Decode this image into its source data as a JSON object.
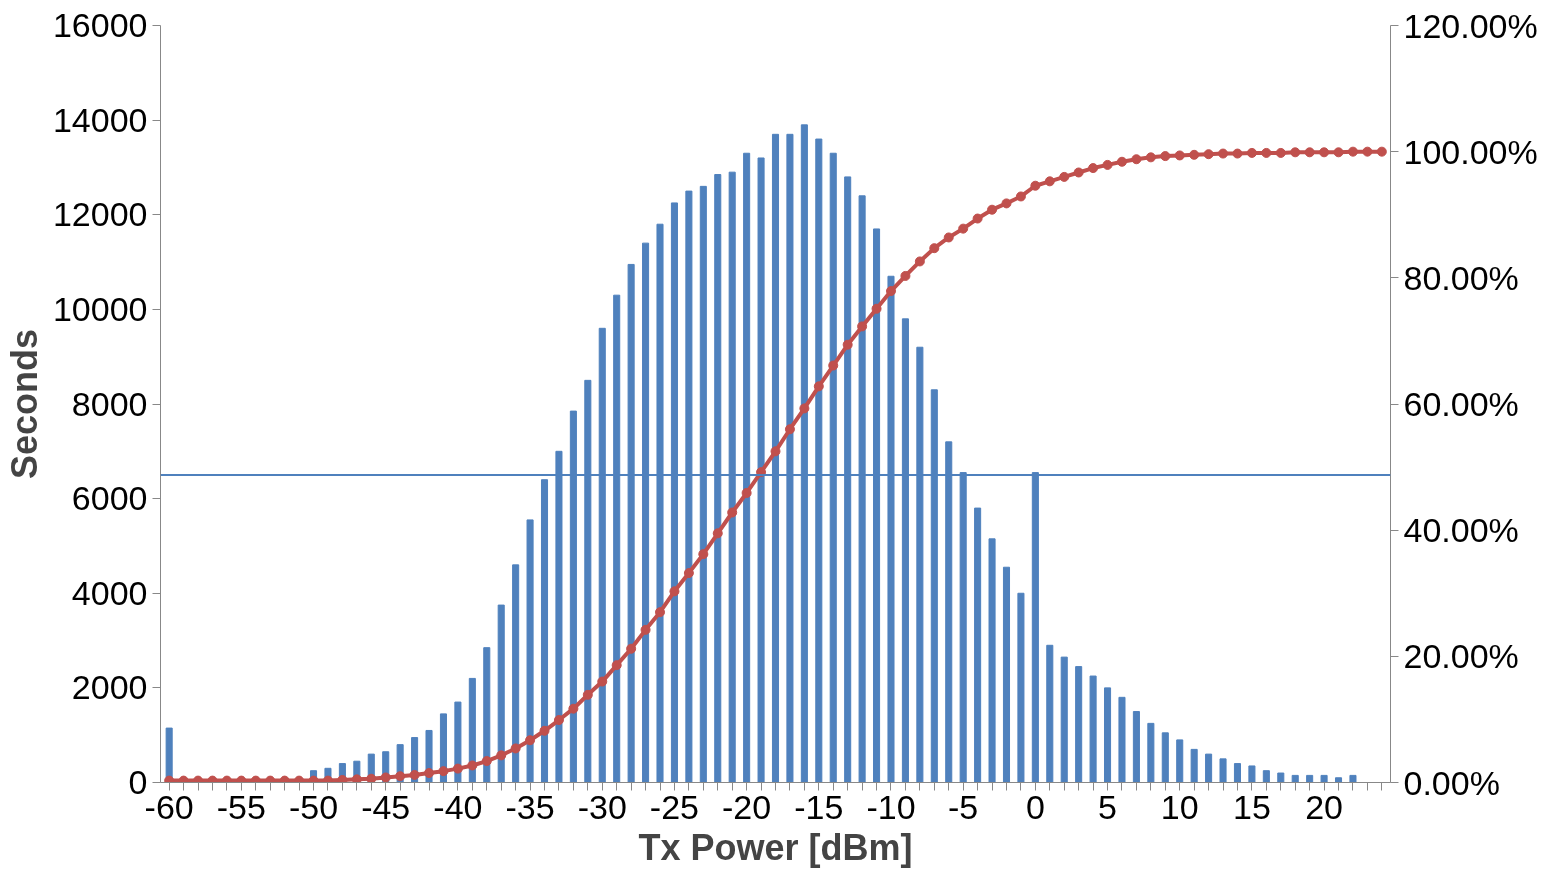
{
  "chart_data": {
    "type": "bar",
    "xlabel": "Tx Power [dBm]",
    "ylabel": "Seconds",
    "categories": [
      "-60",
      null,
      null,
      null,
      null,
      "-55",
      null,
      null,
      null,
      null,
      "-50",
      null,
      null,
      null,
      null,
      "-45",
      null,
      null,
      null,
      null,
      "-40",
      null,
      null,
      null,
      null,
      "-35",
      null,
      null,
      null,
      null,
      "-30",
      null,
      null,
      null,
      null,
      "-25",
      null,
      null,
      null,
      null,
      "-20",
      null,
      null,
      null,
      null,
      "-15",
      null,
      null,
      null,
      null,
      "-10",
      null,
      null,
      null,
      null,
      "-5",
      null,
      null,
      null,
      null,
      "0",
      null,
      null,
      null,
      null,
      "5",
      null,
      null,
      null,
      null,
      "10",
      null,
      null,
      null,
      null,
      "15",
      null,
      null,
      null,
      null,
      "20",
      null,
      null,
      null,
      null
    ],
    "series": [
      {
        "color": "#4f81bd",
        "values": [
          1150,
          null,
          null,
          null,
          null,
          null,
          null,
          null,
          null,
          null,
          250,
          300,
          400,
          450,
          600,
          650,
          800,
          950,
          1100,
          1450,
          1700,
          2200,
          2850,
          3750,
          4600,
          5550,
          6400,
          7000,
          7850,
          8500,
          9600,
          10300,
          10950,
          11400,
          11800,
          12250,
          12500,
          12600,
          12850,
          12900,
          13300,
          13200,
          13700,
          13700,
          13900,
          13600,
          13300,
          12800,
          12400,
          11700,
          10700,
          9800,
          9200,
          8300,
          7200,
          6550,
          5800,
          5150,
          4550,
          4000,
          6550,
          2900,
          2650,
          2450,
          2250,
          2000,
          1800,
          1500,
          1250,
          1050,
          900,
          700,
          600,
          500,
          400,
          350,
          250,
          200,
          150,
          150,
          150,
          100,
          150,
          null,
          null
        ]
      },
      {
        "type": "line",
        "axis": "y2",
        "color": "#c0504d",
        "marker": "circle",
        "values": [
          0.3,
          0.3,
          0.3,
          0.3,
          0.3,
          0.3,
          0.3,
          0.3,
          0.3,
          0.3,
          0.3,
          0.3,
          0.4,
          0.5,
          0.6,
          0.8,
          1.0,
          1.2,
          1.5,
          1.8,
          2.2,
          2.7,
          3.4,
          4.3,
          5.4,
          6.7,
          8.2,
          9.9,
          11.7,
          13.9,
          16.0,
          18.6,
          21.2,
          24.2,
          27.0,
          30.3,
          33.2,
          36.2,
          39.5,
          42.8,
          45.9,
          49.2,
          52.5,
          56.0,
          59.3,
          62.8,
          66.1,
          69.4,
          72.3,
          75.1,
          77.9,
          80.3,
          82.6,
          84.7,
          86.4,
          87.8,
          89.4,
          90.8,
          91.8,
          92.9,
          94.6,
          95.3,
          96.0,
          96.7,
          97.4,
          97.9,
          98.4,
          98.8,
          99.1,
          99.3,
          99.4,
          99.5,
          99.6,
          99.7,
          99.7,
          99.8,
          99.8,
          99.8,
          99.9,
          99.9,
          99.9,
          99.9,
          100,
          100,
          100
        ]
      }
    ],
    "ylim": [
      0,
      16000
    ],
    "yticks": [
      0,
      2000,
      4000,
      6000,
      8000,
      10000,
      12000,
      14000,
      16000
    ],
    "y2lim": [
      0,
      120
    ],
    "y2ticks": [
      {
        "value": 0,
        "label": "0.00%"
      },
      {
        "value": 20,
        "label": "20.00%"
      },
      {
        "value": 40,
        "label": "40.00%"
      },
      {
        "value": 60,
        "label": "60.00%"
      },
      {
        "value": 80,
        "label": "80.00%"
      },
      {
        "value": 100,
        "label": "100.00%"
      },
      {
        "value": 120,
        "label": "120.00%"
      }
    ],
    "ref_lines": [
      {
        "axis": "y",
        "value": 6500,
        "color": "#4f81bd"
      }
    ],
    "grid": false
  }
}
